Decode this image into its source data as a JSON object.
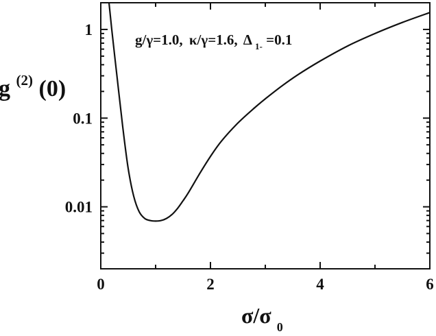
{
  "chart_data": {
    "type": "line",
    "title": "",
    "annotation": {
      "g": "g/γ=1.0,",
      "kappa": "κ/γ=1.6,",
      "delta_sym": "Δ",
      "delta_sub": "1-",
      "delta_val": "=0.1"
    },
    "ylabel": {
      "main": "g",
      "sup": "(2)",
      "tail": "(0)"
    },
    "xlabel": {
      "main": "σ/σ",
      "sub": "0"
    },
    "x_scale": "linear",
    "y_scale": "log",
    "xlim": [
      0,
      6
    ],
    "ylim": [
      0.002,
      2
    ],
    "x_ticks": [
      {
        "value": 0,
        "label": "0"
      },
      {
        "value": 2,
        "label": "2"
      },
      {
        "value": 4,
        "label": "4"
      },
      {
        "value": 6,
        "label": "6"
      }
    ],
    "x_minor_ticks": [
      1,
      3,
      5
    ],
    "y_ticks": [
      {
        "value": 1,
        "label": "1"
      },
      {
        "value": 0.1,
        "label": "0.1"
      },
      {
        "value": 0.01,
        "label": "0.01"
      }
    ],
    "grid": false,
    "series": [
      {
        "color": "#111111",
        "x": [
          0.15,
          0.2,
          0.3,
          0.4,
          0.5,
          0.6,
          0.7,
          0.8,
          0.9,
          1.0,
          1.1,
          1.2,
          1.3,
          1.4,
          1.5,
          1.6,
          1.8,
          2.0,
          2.2,
          2.5,
          2.8,
          3.0,
          3.3,
          3.6,
          4.0,
          4.5,
          5.0,
          5.5,
          6.0
        ],
        "y": [
          2.0,
          1.0,
          0.28,
          0.08,
          0.027,
          0.0132,
          0.0088,
          0.0074,
          0.007,
          0.0069,
          0.007,
          0.0074,
          0.0082,
          0.0096,
          0.0117,
          0.0145,
          0.0235,
          0.037,
          0.055,
          0.088,
          0.13,
          0.165,
          0.23,
          0.31,
          0.44,
          0.65,
          0.9,
          1.2,
          1.55
        ]
      }
    ]
  }
}
